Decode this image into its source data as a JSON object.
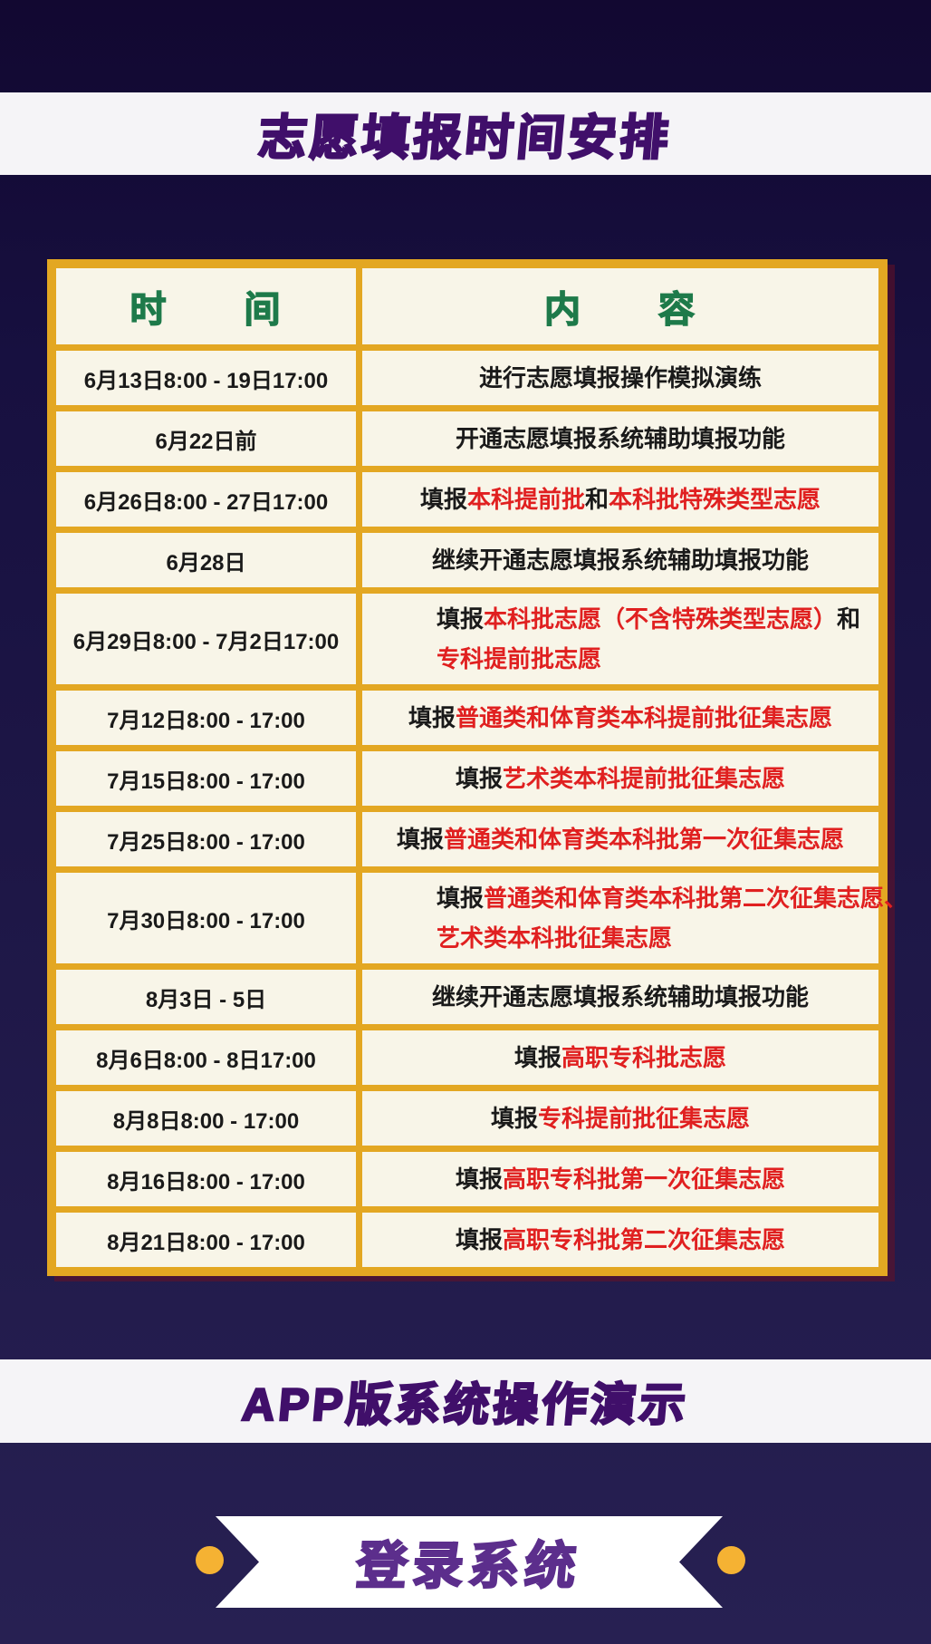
{
  "colors": {
    "band_bg": "#f5f4f7",
    "banner_text": "#400f6a",
    "table_border": "#e3a722",
    "cell_bg": "#f8f5e8",
    "header_green": "#1e7a4a",
    "highlight_red": "#e02020",
    "text_black": "#1a1a1a",
    "ribbon_text": "#5c2e8c",
    "dot_yellow": "#f5b233"
  },
  "title_banner": {
    "text": "志愿填报时间安排"
  },
  "app_banner": {
    "text": "APP版系统操作演示"
  },
  "ribbon": {
    "text": "登录系统"
  },
  "table": {
    "headers": {
      "time": "时　　间",
      "content": "内　　容"
    },
    "rows": [
      {
        "time": "6月13日8:00 - 19日17:00",
        "tall": false,
        "lines": [
          [
            {
              "t": "进行志愿填报操作模拟演练",
              "red": false
            }
          ]
        ]
      },
      {
        "time": "6月22日前",
        "tall": false,
        "lines": [
          [
            {
              "t": "开通志愿填报系统辅助填报功能",
              "red": false
            }
          ]
        ]
      },
      {
        "time": "6月26日8:00 - 27日17:00",
        "tall": false,
        "lines": [
          [
            {
              "t": "填报",
              "red": false
            },
            {
              "t": "本科提前批",
              "red": true
            },
            {
              "t": "和",
              "red": false
            },
            {
              "t": "本科批特殊类型志愿",
              "red": true
            }
          ]
        ]
      },
      {
        "time": "6月28日",
        "tall": false,
        "lines": [
          [
            {
              "t": "继续开通志愿填报系统辅助填报功能",
              "red": false
            }
          ]
        ]
      },
      {
        "time": "6月29日8:00 - 7月2日17:00",
        "tall": true,
        "lines": [
          [
            {
              "t": "填报",
              "red": false
            },
            {
              "t": "本科批志愿（不含特殊类型志愿）",
              "red": true
            },
            {
              "t": "和",
              "red": false
            }
          ],
          [
            {
              "t": "专科提前批志愿",
              "red": true
            }
          ]
        ]
      },
      {
        "time": "7月12日8:00 - 17:00",
        "tall": false,
        "lines": [
          [
            {
              "t": "填报",
              "red": false
            },
            {
              "t": "普通类和体育类本科提前批征集志愿",
              "red": true
            }
          ]
        ]
      },
      {
        "time": "7月15日8:00 - 17:00",
        "tall": false,
        "lines": [
          [
            {
              "t": "填报",
              "red": false
            },
            {
              "t": "艺术类本科提前批征集志愿",
              "red": true
            }
          ]
        ]
      },
      {
        "time": "7月25日8:00 - 17:00",
        "tall": false,
        "lines": [
          [
            {
              "t": "填报",
              "red": false
            },
            {
              "t": "普通类和体育类本科批第一次征集志愿",
              "red": true
            }
          ]
        ]
      },
      {
        "time": "7月30日8:00 - 17:00",
        "tall": true,
        "lines": [
          [
            {
              "t": "填报",
              "red": false
            },
            {
              "t": "普通类和体育类本科批第二次征集志愿、",
              "red": true
            }
          ],
          [
            {
              "t": "艺术类本科批征集志愿",
              "red": true
            }
          ]
        ]
      },
      {
        "time": "8月3日 - 5日",
        "tall": false,
        "lines": [
          [
            {
              "t": "继续开通志愿填报系统辅助填报功能",
              "red": false
            }
          ]
        ]
      },
      {
        "time": "8月6日8:00 - 8日17:00",
        "tall": false,
        "lines": [
          [
            {
              "t": "填报",
              "red": false
            },
            {
              "t": "高职专科批志愿",
              "red": true
            }
          ]
        ]
      },
      {
        "time": "8月8日8:00 - 17:00",
        "tall": false,
        "lines": [
          [
            {
              "t": "填报",
              "red": false
            },
            {
              "t": "专科提前批征集志愿",
              "red": true
            }
          ]
        ]
      },
      {
        "time": "8月16日8:00 - 17:00",
        "tall": false,
        "lines": [
          [
            {
              "t": "填报",
              "red": false
            },
            {
              "t": "高职专科批第一次征集志愿",
              "red": true
            }
          ]
        ]
      },
      {
        "time": "8月21日8:00 - 17:00",
        "tall": false,
        "lines": [
          [
            {
              "t": "填报",
              "red": false
            },
            {
              "t": "高职专科批第二次征集志愿",
              "red": true
            }
          ]
        ]
      }
    ]
  }
}
